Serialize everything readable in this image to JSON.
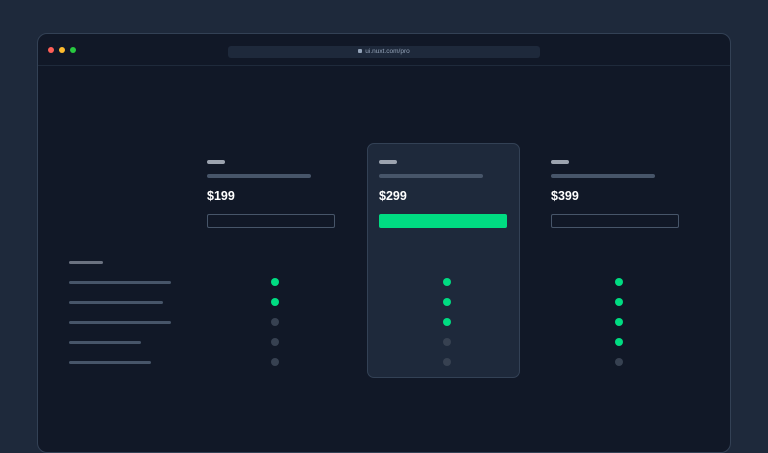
{
  "browser": {
    "url": "ui.nuxt.com/pro",
    "traffic_lights": [
      "#ff5f57",
      "#febc2e",
      "#28c840"
    ]
  },
  "colors": {
    "accent": "#00dc82",
    "inactive": "#374151"
  },
  "plans": [
    {
      "price": "$199",
      "highlighted": false,
      "features": [
        true,
        true,
        false,
        false,
        false
      ]
    },
    {
      "price": "$299",
      "highlighted": true,
      "features": [
        true,
        true,
        true,
        false,
        false
      ]
    },
    {
      "price": "$399",
      "highlighted": false,
      "features": [
        true,
        true,
        true,
        true,
        false
      ]
    }
  ]
}
